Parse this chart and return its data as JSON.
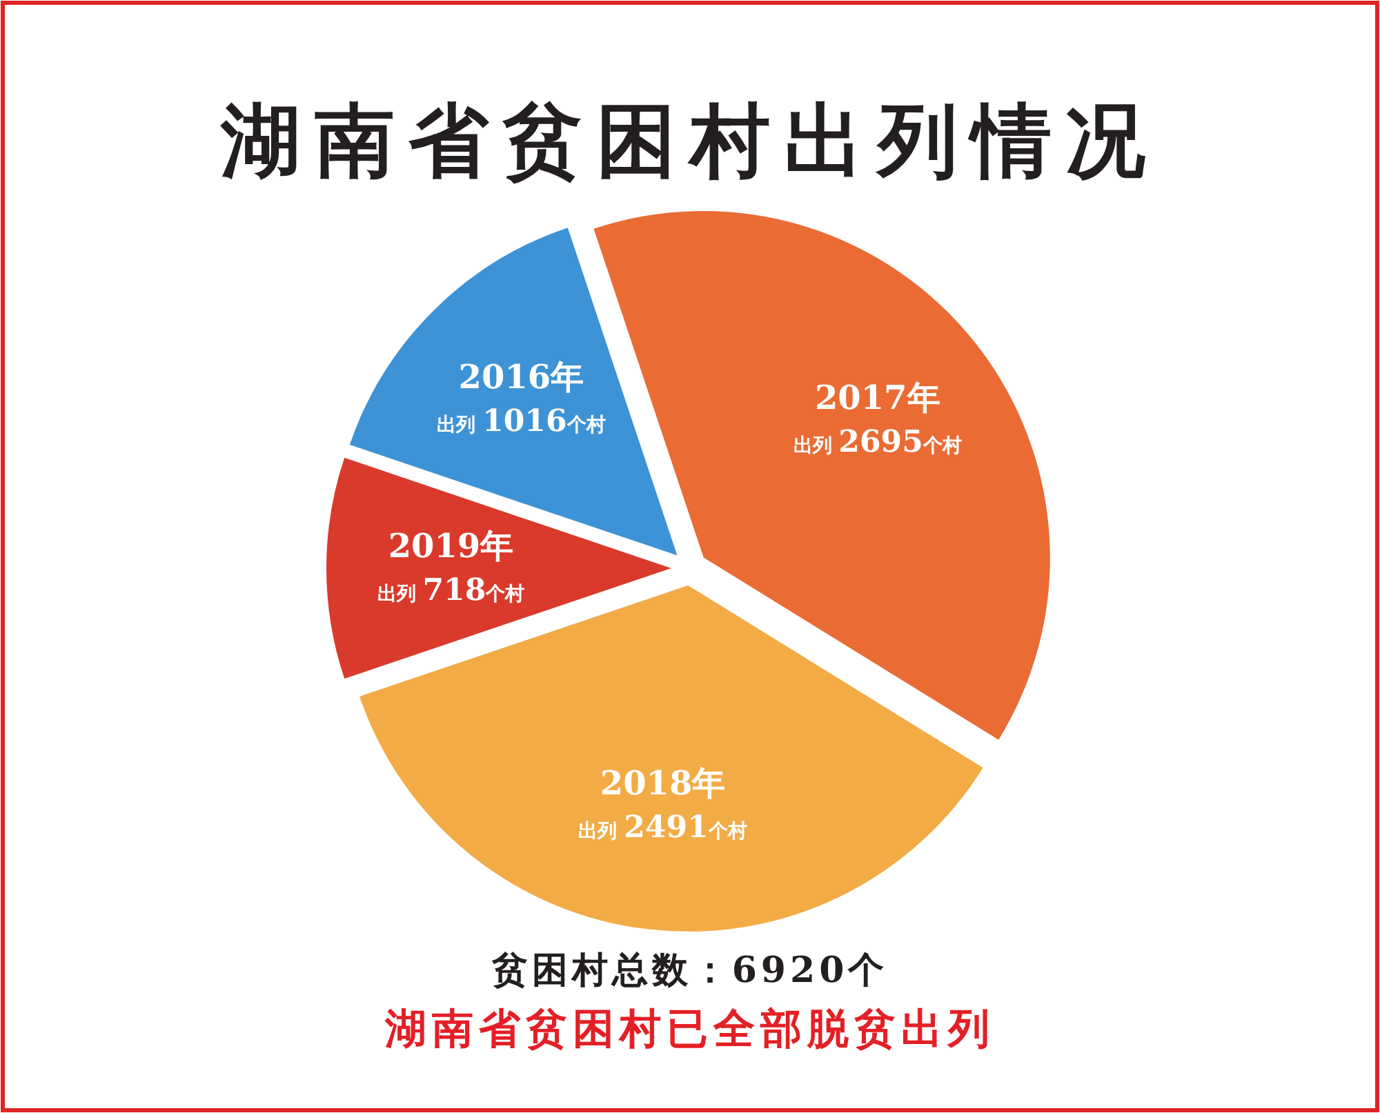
{
  "chart_data": {
    "type": "pie",
    "title": "湖南省贫困村出列情况",
    "categories": [
      "2016年",
      "2017年",
      "2018年",
      "2019年"
    ],
    "values": [
      1016,
      2695,
      2491,
      718
    ],
    "colors": [
      "#3d93d6",
      "#ea6b33",
      "#f3ab45",
      "#d93a2c"
    ],
    "value_labels": [
      "出列 1016个村",
      "出列 2695个村",
      "出列 2491个村",
      "出列 718个村"
    ],
    "annotations": [
      "贫困村总数：6920个",
      "湖南省贫困村已全部脱贫出列"
    ]
  }
}
